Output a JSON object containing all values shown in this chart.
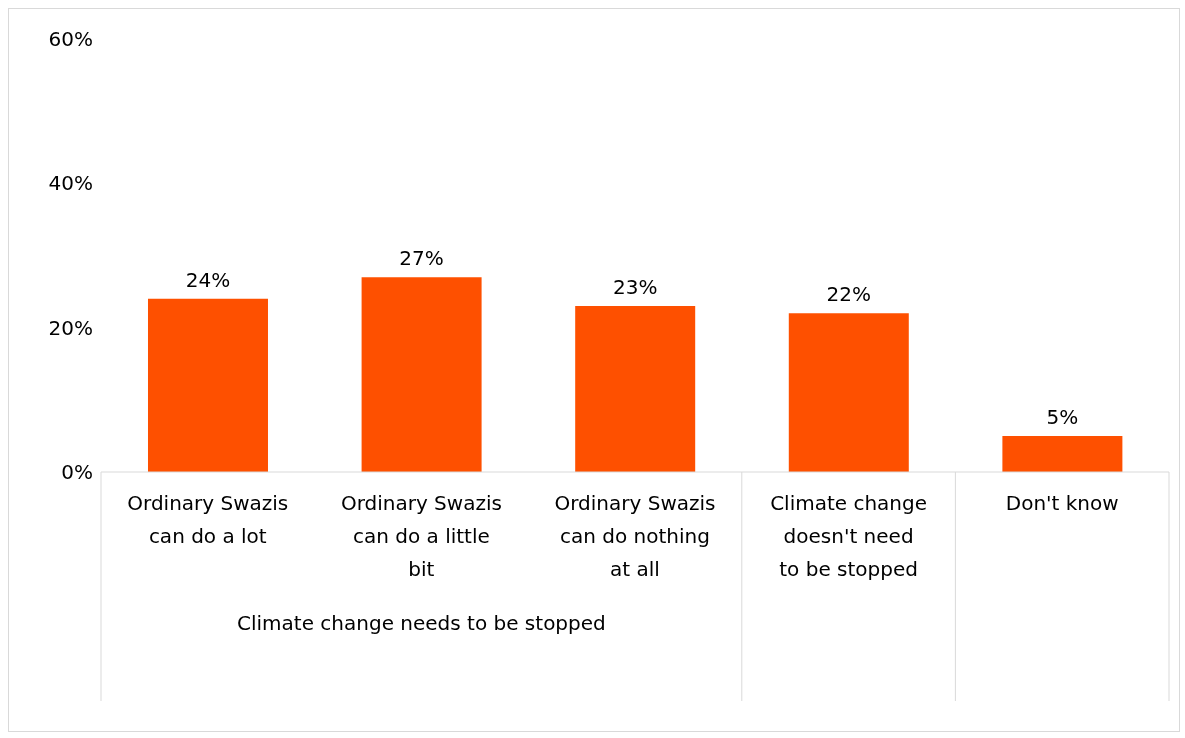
{
  "chart_data": {
    "type": "bar",
    "categories": [
      "Ordinary Swazis can do a lot",
      "Ordinary Swazis can do a little bit",
      "Ordinary Swazis can do nothing at all",
      "Climate change doesn't need to be stopped",
      "Don't know"
    ],
    "values": [
      24,
      27,
      23,
      22,
      5
    ],
    "value_labels": [
      "24%",
      "27%",
      "23%",
      "22%",
      "5%"
    ],
    "color": "#fe5000",
    "ylim": [
      0,
      60
    ],
    "yticks": [
      {
        "value": 0,
        "label": "0%"
      },
      {
        "value": 20,
        "label": "20%"
      },
      {
        "value": 40,
        "label": "40%"
      },
      {
        "value": 60,
        "label": "60%"
      }
    ],
    "grid": false,
    "annotations": [
      "Climate change needs to be stopped"
    ]
  }
}
